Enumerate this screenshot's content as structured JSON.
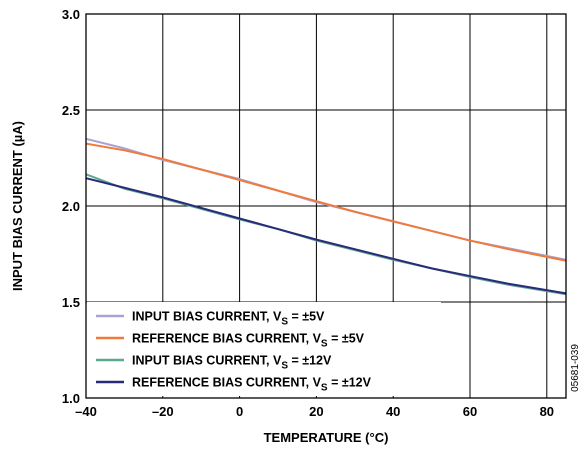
{
  "chart_data": {
    "type": "line",
    "title": "",
    "xlabel": "TEMPERATURE (°C)",
    "ylabel": "INPUT BIAS CURRENT (µA)",
    "xlim": [
      -40,
      85
    ],
    "ylim": [
      1.0,
      3.0
    ],
    "x_ticks": [
      -40,
      -20,
      0,
      20,
      40,
      60,
      80
    ],
    "x_tick_labels": [
      "–40",
      "–20",
      "0",
      "20",
      "40",
      "60",
      "80"
    ],
    "y_ticks": [
      1.0,
      1.5,
      2.0,
      2.5,
      3.0
    ],
    "y_tick_labels": [
      "1.0",
      "1.5",
      "2.0",
      "2.5",
      "3.0"
    ],
    "grid": true,
    "legend_position": "bottom-left",
    "figure_code": "05681-039",
    "x": [
      -40,
      -30,
      -20,
      -10,
      0,
      10,
      20,
      30,
      40,
      50,
      60,
      70,
      85
    ],
    "series": [
      {
        "name": "INPUT BIAS CURRENT, V_S = ±5V",
        "label_main": "INPUT BIAS CURRENT, V",
        "label_sub": "S",
        "label_tail": " = ±5V",
        "color": "#a8a2d4",
        "values": [
          2.35,
          2.3,
          2.24,
          2.19,
          2.14,
          2.08,
          2.02,
          1.97,
          1.92,
          1.87,
          1.82,
          1.78,
          1.72
        ]
      },
      {
        "name": "REFERENCE BIAS CURRENT, V_S = ±5V",
        "label_main": "REFERENCE BIAS CURRENT, V",
        "label_sub": "S",
        "label_tail": " = ±5V",
        "color": "#f07a3c",
        "values": [
          2.325,
          2.29,
          2.245,
          2.19,
          2.135,
          2.08,
          2.025,
          1.97,
          1.92,
          1.87,
          1.82,
          1.775,
          1.715
        ]
      },
      {
        "name": "INPUT BIAS CURRENT, V_S = ±12V",
        "label_main": "INPUT BIAS CURRENT, V",
        "label_sub": "S",
        "label_tail": " = ±12V",
        "color": "#5fa88e",
        "values": [
          2.165,
          2.09,
          2.04,
          1.985,
          1.93,
          1.88,
          1.82,
          1.77,
          1.72,
          1.675,
          1.63,
          1.59,
          1.54
        ]
      },
      {
        "name": "REFERENCE BIAS CURRENT, V_S = ±12V",
        "label_main": "REFERENCE BIAS CURRENT, V",
        "label_sub": "S",
        "label_tail": " = ±12V",
        "color": "#2a2a7a",
        "values": [
          2.145,
          2.095,
          2.045,
          1.99,
          1.935,
          1.88,
          1.825,
          1.775,
          1.725,
          1.675,
          1.635,
          1.595,
          1.545
        ]
      }
    ]
  }
}
